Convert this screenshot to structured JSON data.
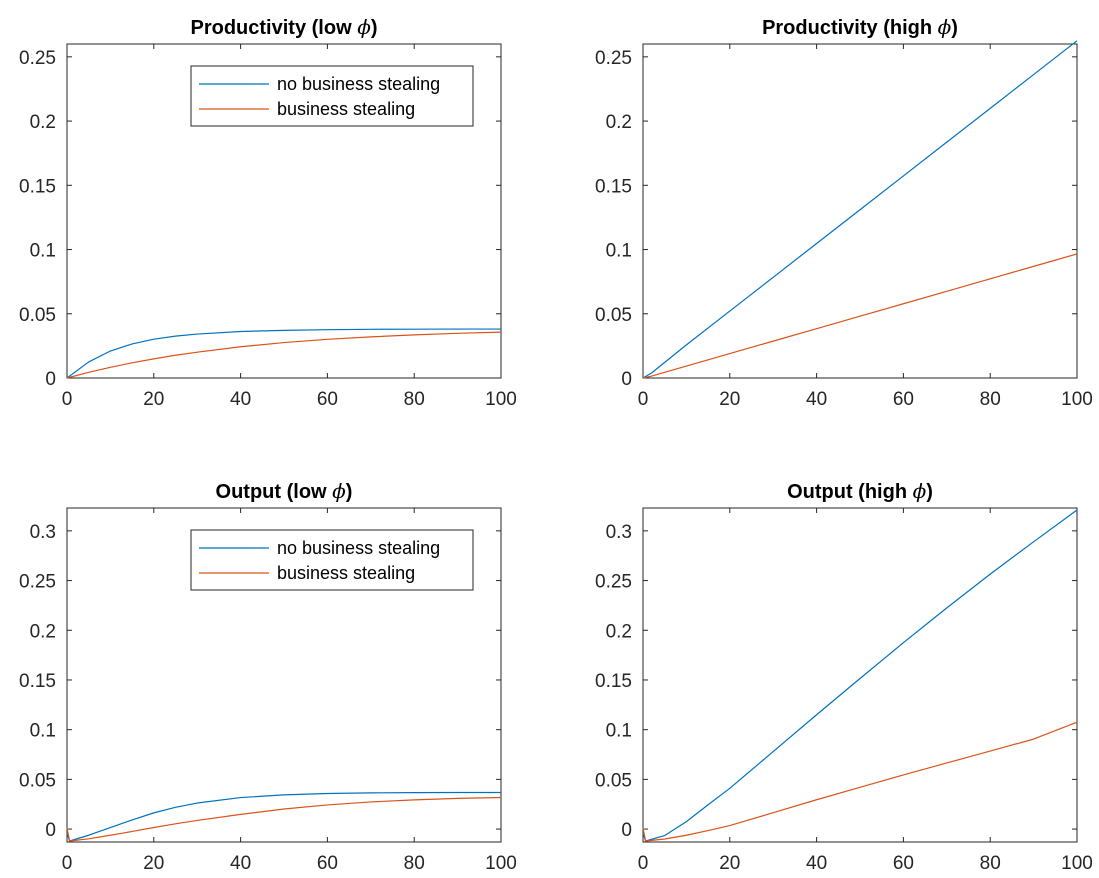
{
  "colors": {
    "no_business_stealing": "#0072BD",
    "business_stealing": "#D95319"
  },
  "chart_data": [
    {
      "type": "line",
      "title_text": "Productivity (low ",
      "title_symbol": "ϕ",
      "title_close": ")",
      "xlim": [
        0,
        100
      ],
      "ylim": [
        0,
        0.26
      ],
      "xticks": [
        0,
        20,
        40,
        60,
        80,
        100
      ],
      "yticks": [
        0,
        0.05,
        0.1,
        0.15,
        0.2,
        0.25
      ],
      "ytick_labels": [
        "0",
        "0.05",
        "0.1",
        "0.15",
        "0.2",
        "0.25"
      ],
      "grid": false,
      "legend": {
        "placement": "top-right",
        "entries": [
          "no business stealing",
          "business stealing"
        ]
      },
      "series": [
        {
          "name": "no business stealing",
          "color": "#0072BD",
          "x": [
            0,
            5,
            10,
            15,
            20,
            25,
            30,
            40,
            50,
            60,
            70,
            80,
            90,
            100
          ],
          "y": [
            0,
            0.0125,
            0.021,
            0.0265,
            0.0302,
            0.0326,
            0.0342,
            0.0362,
            0.0371,
            0.0376,
            0.0379,
            0.038,
            0.0381,
            0.0381
          ]
        },
        {
          "name": "business stealing",
          "color": "#D95319",
          "x": [
            0,
            5,
            10,
            15,
            20,
            25,
            30,
            40,
            50,
            60,
            70,
            80,
            90,
            100
          ],
          "y": [
            0,
            0.0044,
            0.0083,
            0.0118,
            0.0149,
            0.0177,
            0.0201,
            0.0243,
            0.0276,
            0.0301,
            0.032,
            0.0336,
            0.0348,
            0.0357
          ]
        }
      ]
    },
    {
      "type": "line",
      "title_text": "Productivity (high ",
      "title_symbol": "ϕ",
      "title_close": ")",
      "xlim": [
        0,
        100
      ],
      "ylim": [
        0,
        0.26
      ],
      "xticks": [
        0,
        20,
        40,
        60,
        80,
        100
      ],
      "yticks": [
        0,
        0.05,
        0.1,
        0.15,
        0.2,
        0.25
      ],
      "ytick_labels": [
        "0",
        "0.05",
        "0.1",
        "0.15",
        "0.2",
        "0.25"
      ],
      "grid": false,
      "series": [
        {
          "name": "no business stealing",
          "color": "#0072BD",
          "x": [
            0,
            2,
            10,
            20,
            30,
            40,
            50,
            60,
            70,
            80,
            90,
            100
          ],
          "y": [
            0,
            0.004,
            0.0258,
            0.0521,
            0.0784,
            0.1047,
            0.131,
            0.1573,
            0.1836,
            0.2099,
            0.2362,
            0.2625
          ]
        },
        {
          "name": "business stealing",
          "color": "#D95319",
          "x": [
            0,
            2,
            10,
            20,
            30,
            40,
            50,
            60,
            70,
            80,
            90,
            100
          ],
          "y": [
            0,
            0.0015,
            0.0093,
            0.019,
            0.0287,
            0.0384,
            0.0481,
            0.0578,
            0.0675,
            0.0772,
            0.0869,
            0.0966
          ]
        }
      ]
    },
    {
      "type": "line",
      "title_text": "Output (low ",
      "title_symbol": "ϕ",
      "title_close": ")",
      "xlim": [
        0,
        100
      ],
      "ylim": [
        -0.013,
        0.323
      ],
      "xticks": [
        0,
        20,
        40,
        60,
        80,
        100
      ],
      "yticks": [
        0,
        0.05,
        0.1,
        0.15,
        0.2,
        0.25,
        0.3
      ],
      "ytick_labels": [
        "0",
        "0.05",
        "0.1",
        "0.15",
        "0.2",
        "0.25",
        "0.3"
      ],
      "grid": false,
      "legend": {
        "placement": "top-right",
        "entries": [
          "no business stealing",
          "business stealing"
        ]
      },
      "series": [
        {
          "name": "no business stealing",
          "color": "#0072BD",
          "x": [
            0,
            0.6,
            5,
            10,
            15,
            20,
            25,
            30,
            40,
            50,
            60,
            70,
            80,
            90,
            100
          ],
          "y": [
            -0.004,
            -0.012,
            -0.0062,
            0.0015,
            0.0092,
            0.0163,
            0.0219,
            0.0262,
            0.0317,
            0.0344,
            0.0358,
            0.0364,
            0.0367,
            0.0368,
            0.0368
          ]
        },
        {
          "name": "business stealing",
          "color": "#D95319",
          "x": [
            0,
            0.6,
            5,
            10,
            15,
            20,
            25,
            30,
            40,
            50,
            60,
            70,
            80,
            90,
            100
          ],
          "y": [
            0.001,
            -0.012,
            -0.0098,
            -0.0062,
            -0.0024,
            0.0016,
            0.0053,
            0.0087,
            0.0148,
            0.0202,
            0.0243,
            0.0273,
            0.0294,
            0.0309,
            0.0318
          ]
        }
      ]
    },
    {
      "type": "line",
      "title_text": "Output (high ",
      "title_symbol": "ϕ",
      "title_close": ")",
      "xlim": [
        0,
        100
      ],
      "ylim": [
        -0.013,
        0.323
      ],
      "xticks": [
        0,
        20,
        40,
        60,
        80,
        100
      ],
      "yticks": [
        0,
        0.05,
        0.1,
        0.15,
        0.2,
        0.25,
        0.3
      ],
      "ytick_labels": [
        "0",
        "0.05",
        "0.1",
        "0.15",
        "0.2",
        "0.25",
        "0.3"
      ],
      "grid": false,
      "series": [
        {
          "name": "no business stealing",
          "color": "#0072BD",
          "x": [
            0,
            0.6,
            5,
            10,
            15,
            20,
            30,
            40,
            50,
            60,
            70,
            80,
            90,
            100
          ],
          "y": [
            -0.004,
            -0.012,
            -0.0065,
            0.0075,
            0.0245,
            0.041,
            0.078,
            0.115,
            0.1515,
            0.1875,
            0.2225,
            0.2565,
            0.289,
            0.321
          ]
        },
        {
          "name": "business stealing",
          "color": "#D95319",
          "x": [
            0,
            0.6,
            5,
            10,
            15,
            20,
            30,
            40,
            50,
            60,
            70,
            80,
            90,
            100
          ],
          "y": [
            0.001,
            -0.012,
            -0.01,
            -0.0062,
            -0.0015,
            0.0035,
            0.0165,
            0.0295,
            0.042,
            0.0545,
            0.0665,
            0.0785,
            0.0905,
            0.1075
          ]
        }
      ]
    }
  ]
}
